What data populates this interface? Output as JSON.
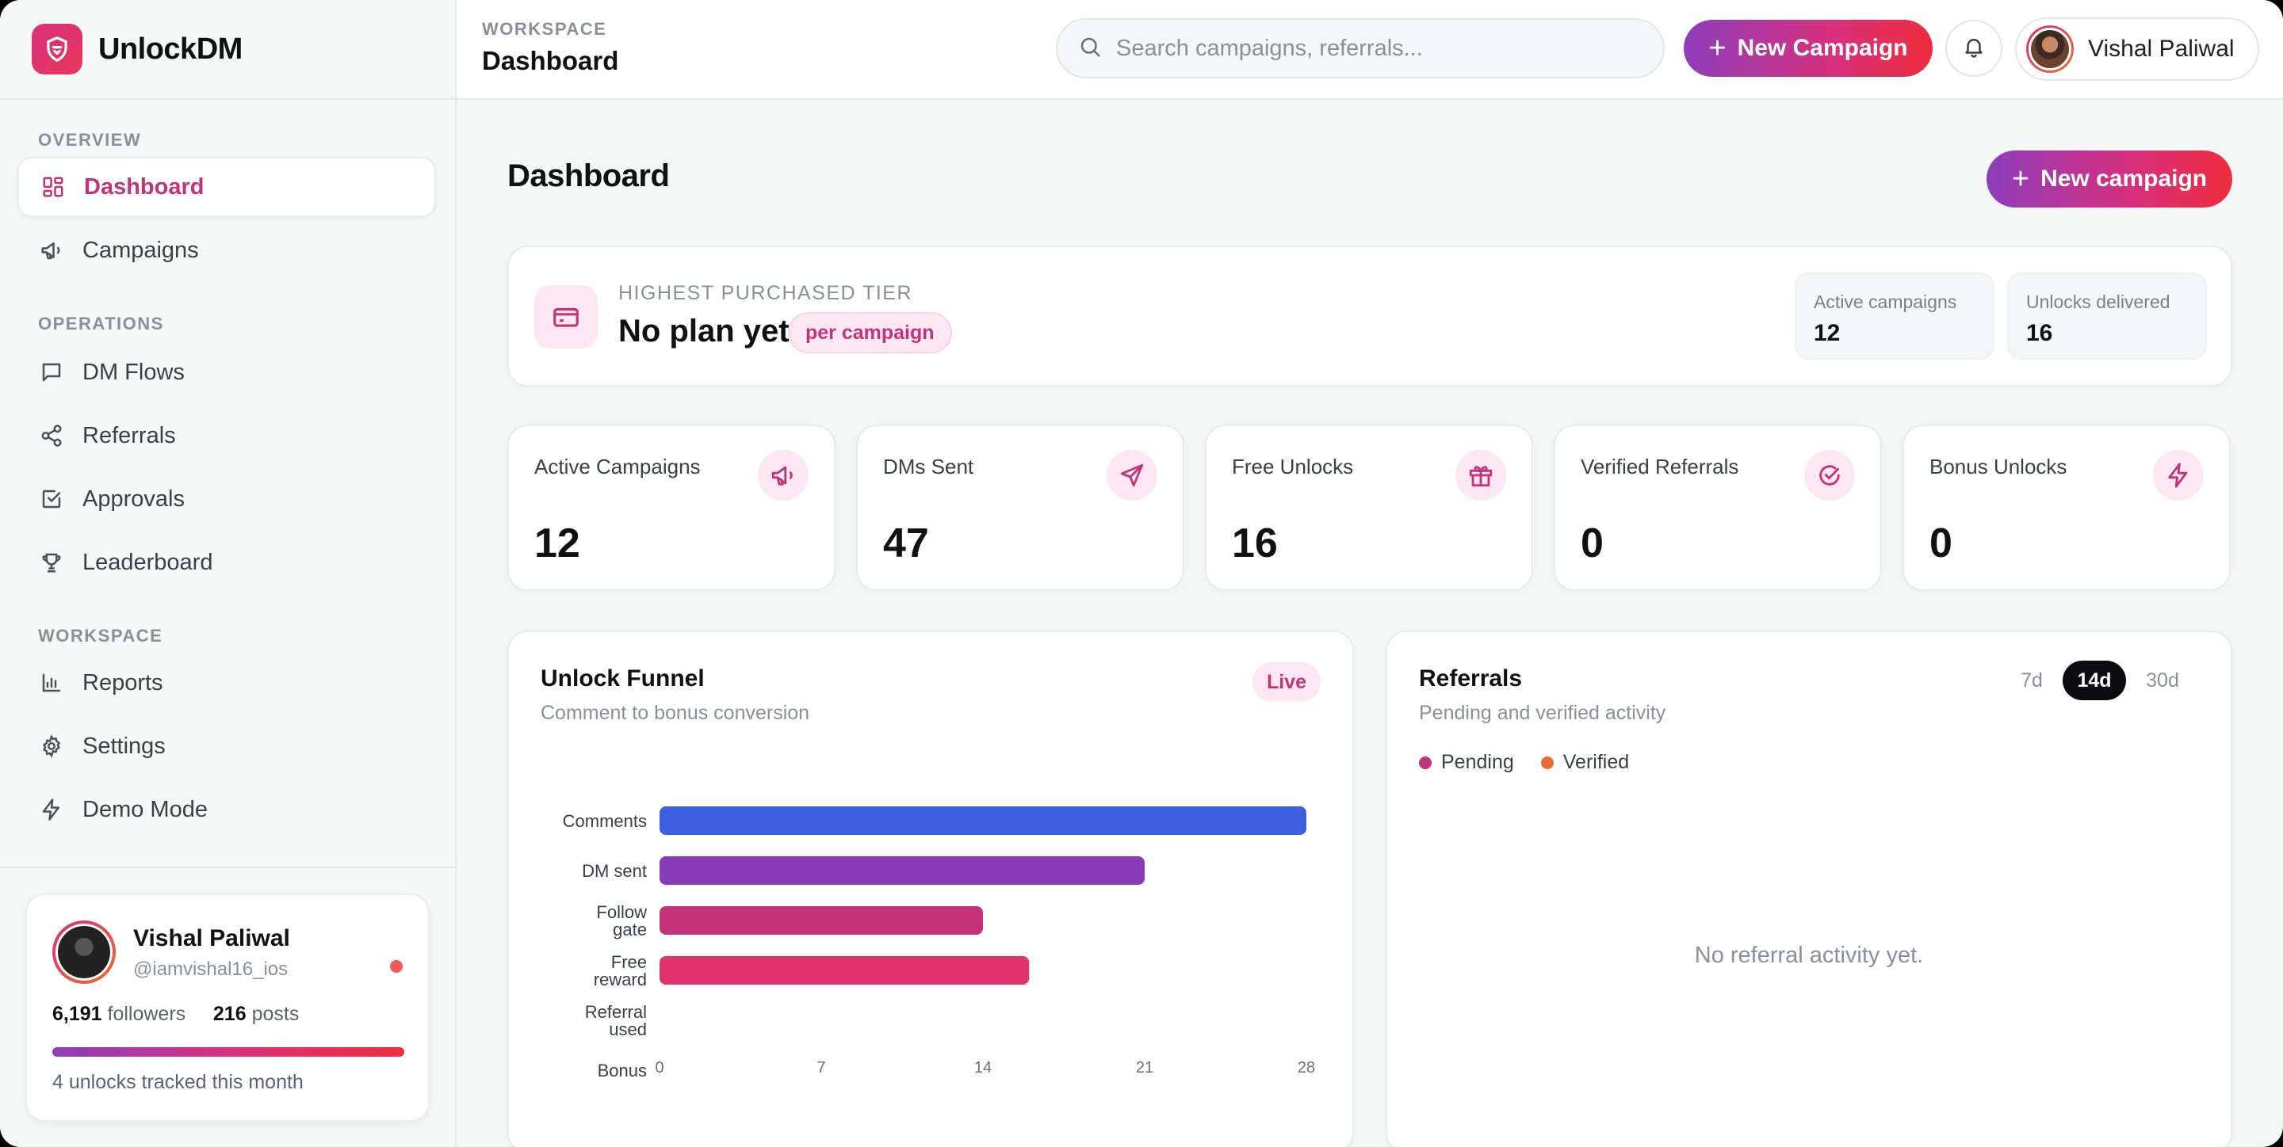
{
  "brand": {
    "name": "UnlockDM"
  },
  "sidebar": {
    "sections": [
      {
        "label": "OVERVIEW",
        "items": [
          {
            "label": "Dashboard",
            "icon": "dashboard-icon",
            "active": true
          },
          {
            "label": "Campaigns",
            "icon": "megaphone-icon"
          }
        ]
      },
      {
        "label": "OPERATIONS",
        "items": [
          {
            "label": "DM Flows",
            "icon": "message-icon"
          },
          {
            "label": "Referrals",
            "icon": "share-icon"
          },
          {
            "label": "Approvals",
            "icon": "check-square-icon"
          },
          {
            "label": "Leaderboard",
            "icon": "trophy-icon"
          }
        ]
      },
      {
        "label": "WORKSPACE",
        "items": [
          {
            "label": "Reports",
            "icon": "bar-chart-icon"
          },
          {
            "label": "Settings",
            "icon": "gear-icon"
          },
          {
            "label": "Demo Mode",
            "icon": "bolt-icon"
          }
        ]
      }
    ],
    "profile": {
      "name": "Vishal Paliwal",
      "handle": "@iamvishal16_ios",
      "followers": "6,191",
      "followers_label": "followers",
      "posts": "216",
      "posts_label": "posts",
      "note": "4 unlocks tracked this month"
    }
  },
  "topbar": {
    "crumb": "WORKSPACE",
    "title": "Dashboard",
    "search_placeholder": "Search campaigns, referrals...",
    "new_campaign": "New Campaign",
    "user_name": "Vishal Paliwal"
  },
  "main": {
    "title": "Dashboard",
    "new_campaign": "New campaign",
    "tier": {
      "label": "HIGHEST PURCHASED TIER",
      "value": "No plan yet",
      "badge": "per campaign",
      "minis": [
        {
          "label": "Active campaigns",
          "value": "12"
        },
        {
          "label": "Unlocks delivered",
          "value": "16"
        }
      ]
    },
    "stats": [
      {
        "label": "Active Campaigns",
        "value": "12",
        "icon": "megaphone-icon"
      },
      {
        "label": "DMs Sent",
        "value": "47",
        "icon": "send-icon"
      },
      {
        "label": "Free Unlocks",
        "value": "16",
        "icon": "gift-icon"
      },
      {
        "label": "Verified Referrals",
        "value": "0",
        "icon": "check-circle-icon"
      },
      {
        "label": "Bonus Unlocks",
        "value": "0",
        "icon": "bolt-icon"
      }
    ],
    "funnel": {
      "title": "Unlock Funnel",
      "subtitle": "Comment to bonus conversion",
      "badge": "Live"
    },
    "referrals": {
      "title": "Referrals",
      "subtitle": "Pending and verified activity",
      "ranges": [
        "7d",
        "14d",
        "30d"
      ],
      "active_range": "14d",
      "legend": [
        {
          "label": "Pending",
          "color": "#c3337a"
        },
        {
          "label": "Verified",
          "color": "#ef6a3a"
        }
      ],
      "empty": "No referral activity yet."
    }
  },
  "colors": {
    "accent": "#c3337a",
    "gradient": [
      "#8e3dbd",
      "#d8307c",
      "#ef2d3c"
    ]
  },
  "chart_data": {
    "type": "bar",
    "orientation": "horizontal",
    "categories": [
      "Comments",
      "DM sent",
      "Follow gate",
      "Free reward",
      "Referral used",
      "Bonus"
    ],
    "values": [
      28,
      21,
      14,
      16,
      0,
      0
    ],
    "bar_colors": [
      "#3d5fe0",
      "#8a3bb8",
      "#c3337a",
      "#e2336e",
      "#e2336e",
      "#e2336e"
    ],
    "xlim": [
      0,
      28
    ],
    "xticks": [
      0,
      7,
      14,
      21,
      28
    ]
  }
}
